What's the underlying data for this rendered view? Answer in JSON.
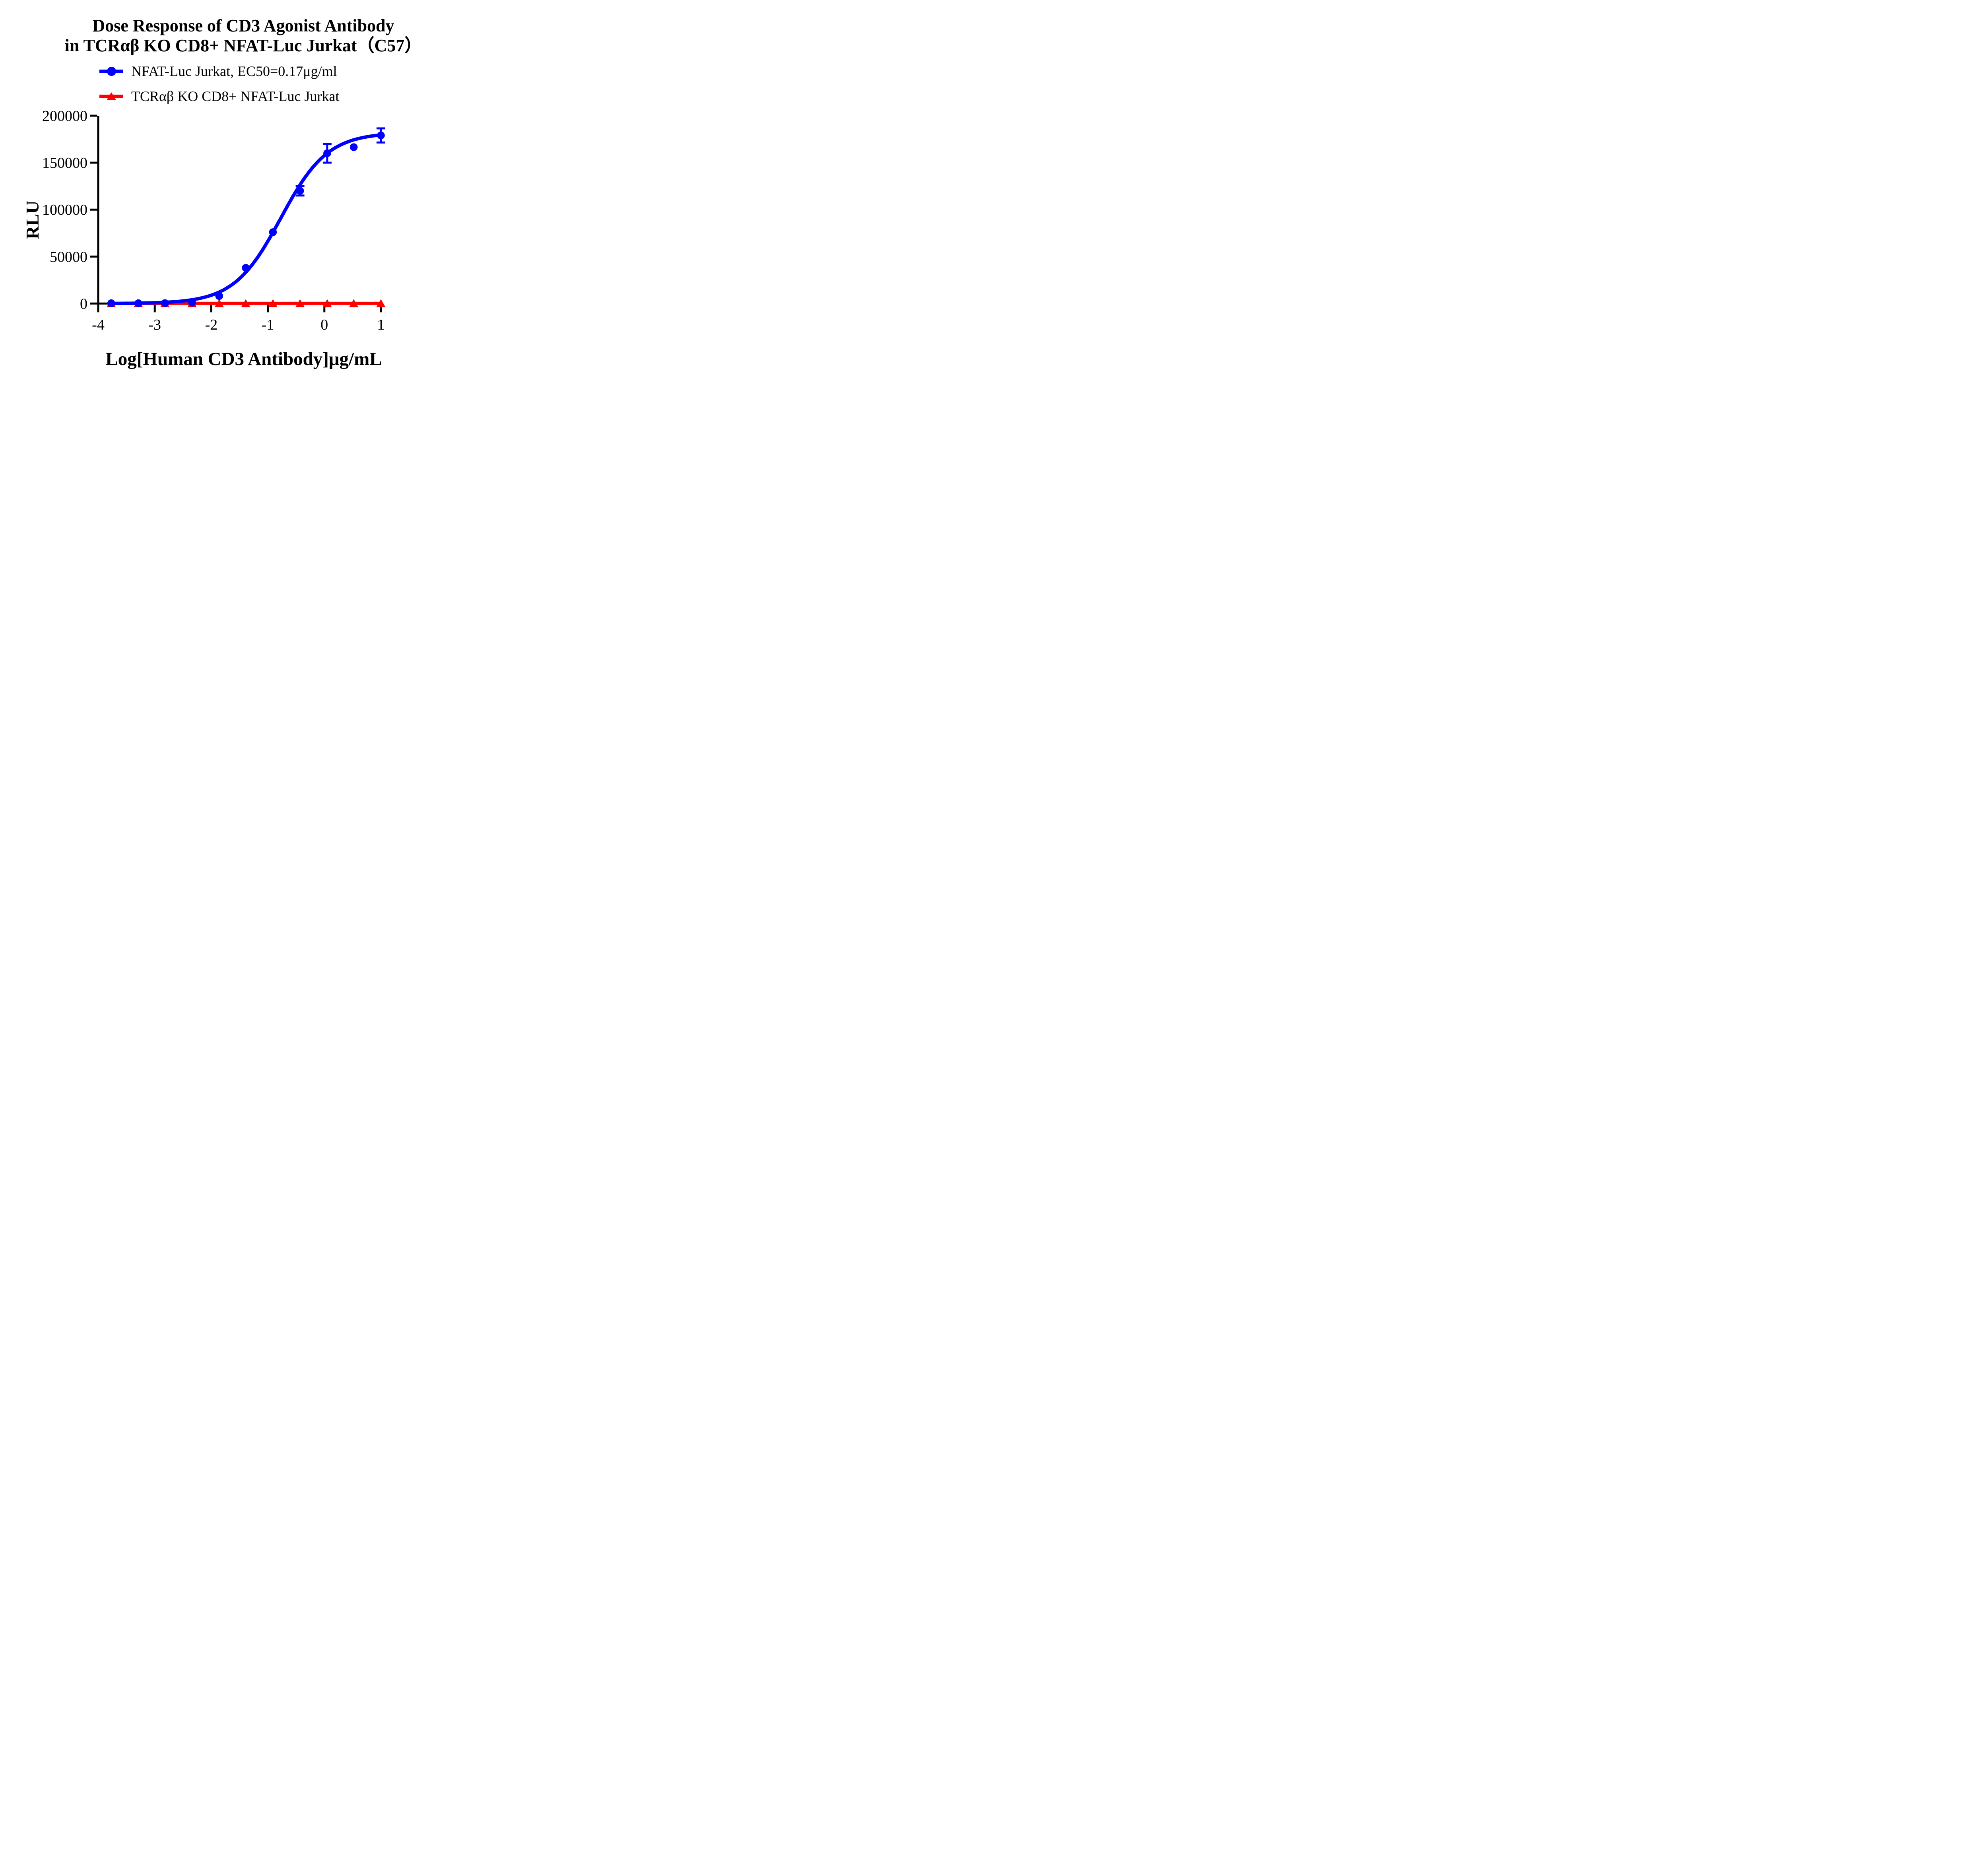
{
  "title": {
    "line1": "Dose Response of CD3 Agonist Antibody",
    "line2": "in TCRαβ KO CD8+ NFAT-Luc Jurkat（C57）"
  },
  "legend": {
    "items": [
      {
        "label": "NFAT-Luc Jurkat, EC50=0.17μg/ml",
        "color": "#0000FF",
        "marker": "circle"
      },
      {
        "label": "TCRαβ KO CD8+ NFAT-Luc Jurkat",
        "color": "#FF0000",
        "marker": "triangle"
      }
    ]
  },
  "axes": {
    "x": {
      "title": "Log[Human CD3 Antibody]μg/mL",
      "tick_labels": [
        "-4",
        "-3",
        "-2",
        "-1",
        "0",
        "1"
      ],
      "tick_values": [
        -4,
        -3,
        -2,
        -1,
        0,
        1
      ],
      "min": -4,
      "max": 1.05
    },
    "y": {
      "title": "RLU",
      "tick_labels": [
        "0",
        "50000",
        "100000",
        "150000",
        "200000"
      ],
      "tick_values": [
        0,
        50000,
        100000,
        150000,
        200000
      ],
      "min": 0,
      "max": 200000
    }
  },
  "chart_data": {
    "type": "scatter",
    "title": "Dose Response of CD3 Agonist Antibody in TCRαβ KO CD8+ NFAT-Luc Jurkat（C57）",
    "xlabel": "Log[Human CD3 Antibody]μg/mL",
    "ylabel": "RLU",
    "xlim": [
      -4,
      1.05
    ],
    "ylim": [
      0,
      200000
    ],
    "grid": false,
    "legend_position": "top-left",
    "series": [
      {
        "name": "NFAT-Luc Jurkat, EC50=0.17μg/ml",
        "color": "#0000FF",
        "marker": "circle",
        "x": [
          -3.77,
          -3.29,
          -2.82,
          -2.34,
          -1.86,
          -1.39,
          -0.91,
          -0.43,
          0.05,
          0.52,
          1.0
        ],
        "y": [
          300,
          300,
          400,
          1000,
          8000,
          38000,
          76000,
          120000,
          160000,
          166500,
          179000
        ],
        "yerr": [
          0,
          0,
          0,
          0,
          0,
          0,
          0,
          5000,
          10000,
          0,
          7500
        ],
        "ec50": "0.17μg/ml",
        "fit": {
          "type": "4PL",
          "bottom": 0,
          "top": 182000,
          "logEC50": -0.77,
          "hill": 1.05
        }
      },
      {
        "name": "TCRαβ KO CD8+ NFAT-Luc Jurkat",
        "color": "#FF0000",
        "marker": "triangle",
        "x": [
          -3.77,
          -3.29,
          -2.82,
          -2.34,
          -1.86,
          -1.39,
          -0.91,
          -0.43,
          0.05,
          0.52,
          1.0
        ],
        "y": [
          200,
          200,
          200,
          200,
          200,
          200,
          200,
          200,
          200,
          200,
          200
        ],
        "yerr": [
          0,
          0,
          0,
          0,
          0,
          0,
          0,
          0,
          0,
          0,
          0
        ],
        "fit": {
          "type": "flat",
          "value": 200
        }
      }
    ]
  }
}
